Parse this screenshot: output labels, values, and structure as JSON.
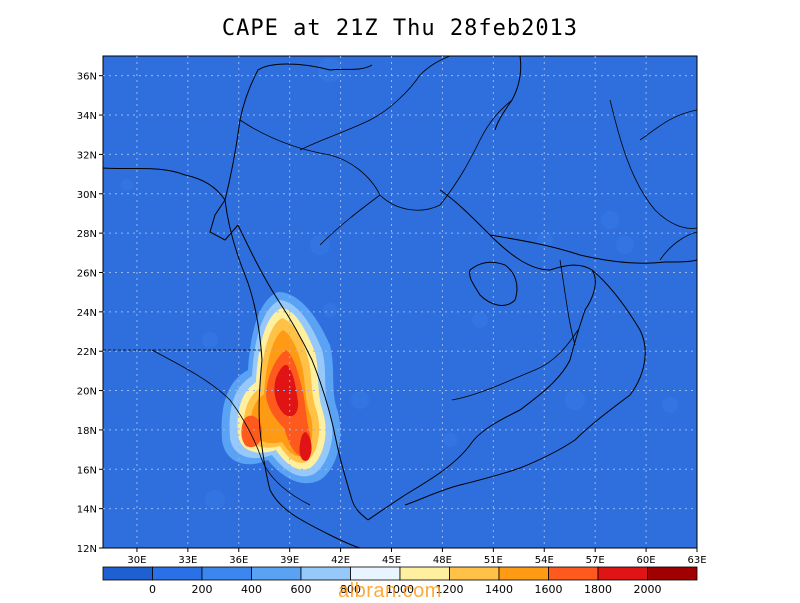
{
  "title": "CAPE at 21Z Thu 28feb2013",
  "axes": {
    "lon_labels": [
      "30E",
      "33E",
      "36E",
      "39E",
      "42E",
      "45E",
      "48E",
      "51E",
      "54E",
      "57E",
      "60E",
      "63E"
    ],
    "lat_labels": [
      "36N",
      "34N",
      "32N",
      "30N",
      "28N",
      "26N",
      "24N",
      "22N",
      "20N",
      "18N",
      "16N",
      "14N",
      "12N"
    ]
  },
  "colorbar": {
    "labels": [
      "0",
      "200",
      "400",
      "600",
      "800",
      "1000",
      "1200",
      "1400",
      "1600",
      "1800",
      "2000"
    ],
    "colors": [
      "#1e5fd2",
      "#2a70e6",
      "#3b87ef",
      "#5aa2f4",
      "#96c8fa",
      "#e8f4ff",
      "#fff0a0",
      "#ffc246",
      "#ff9a14",
      "#ff5a1e",
      "#e01414",
      "#a00000"
    ]
  },
  "background_color": "#2e6fdd",
  "watermark": "albran.com"
}
